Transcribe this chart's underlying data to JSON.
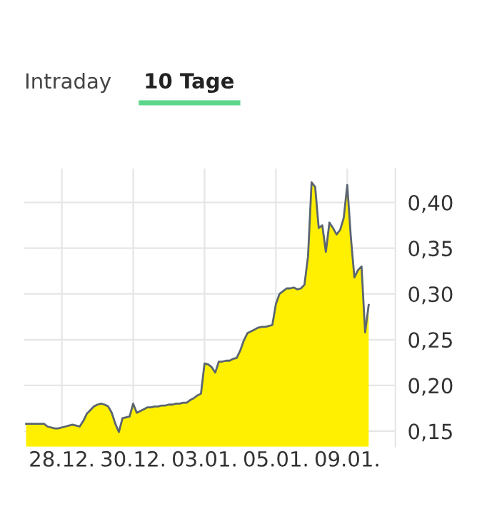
{
  "chart_data": {
    "type": "area",
    "annotations": [
      "Intraday",
      "10 Tage"
    ],
    "categories": [
      null,
      null,
      null,
      null,
      null,
      null,
      null,
      null,
      null,
      null,
      "28.12.",
      null,
      null,
      null,
      null,
      null,
      null,
      null,
      null,
      null,
      null,
      null,
      null,
      null,
      null,
      null,
      null,
      null,
      null,
      null,
      "30.12.",
      null,
      null,
      null,
      null,
      null,
      null,
      null,
      null,
      null,
      null,
      null,
      null,
      null,
      null,
      null,
      null,
      null,
      null,
      null,
      "03.01.",
      null,
      null,
      null,
      null,
      null,
      null,
      null,
      null,
      null,
      null,
      null,
      null,
      null,
      null,
      null,
      null,
      null,
      null,
      null,
      "05.01.",
      null,
      null,
      null,
      null,
      null,
      null,
      null,
      null,
      null,
      null,
      null,
      null,
      null,
      null,
      null,
      null,
      null,
      null,
      null,
      "09.01.",
      null,
      null,
      null,
      null,
      null,
      null,
      null,
      null,
      null,
      null,
      null,
      null,
      null
    ],
    "series": [
      {
        "color": "#ffef00",
        "values": [
          0.158,
          0.158,
          0.158,
          0.158,
          0.158,
          0.158,
          0.155,
          0.154,
          0.153,
          0.153,
          0.154,
          0.155,
          0.156,
          0.157,
          0.156,
          0.155,
          0.161,
          0.169,
          0.173,
          0.177,
          0.179,
          0.18,
          0.179,
          0.177,
          0.17,
          0.158,
          0.149,
          0.164,
          0.165,
          0.166,
          0.18,
          0.17,
          0.172,
          0.174,
          0.176,
          0.176,
          0.177,
          0.177,
          0.178,
          0.178,
          0.179,
          0.179,
          0.18,
          0.18,
          0.181,
          0.181,
          0.184,
          0.186,
          0.189,
          0.191,
          0.224,
          0.223,
          0.22,
          0.214,
          0.226,
          0.226,
          0.227,
          0.227,
          0.229,
          0.23,
          0.238,
          0.249,
          0.257,
          0.259,
          0.261,
          0.263,
          0.264,
          0.264,
          0.265,
          0.266,
          0.289,
          0.3,
          0.303,
          0.306,
          0.306,
          0.307,
          0.305,
          0.306,
          0.31,
          0.341,
          0.422,
          0.417,
          0.372,
          0.375,
          0.346,
          0.378,
          0.372,
          0.365,
          0.37,
          0.383,
          0.419,
          0.362,
          0.318,
          0.326,
          0.33,
          0.258,
          0.288,
          null,
          null,
          null,
          null,
          null,
          null,
          null
        ]
      }
    ],
    "ylim": [
      0.133,
      0.437
    ],
    "yticks": [
      {
        "value": 0.15,
        "label": "0,15"
      },
      {
        "value": 0.2,
        "label": "0,20"
      },
      {
        "value": 0.25,
        "label": "0,25"
      },
      {
        "value": 0.3,
        "label": "0,30"
      },
      {
        "value": 0.35,
        "label": "0,35"
      },
      {
        "value": 0.4,
        "label": "0,40"
      }
    ],
    "grid": true
  }
}
